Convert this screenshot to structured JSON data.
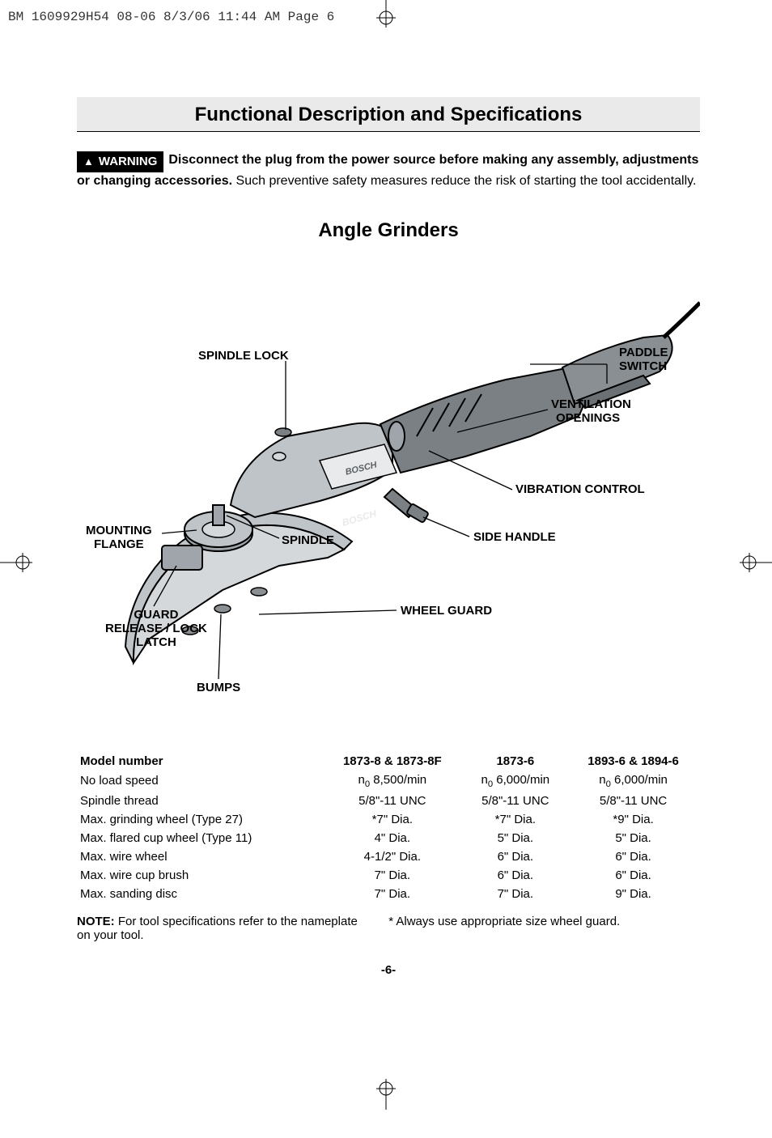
{
  "header_line": "BM 1609929H54 08-06  8/3/06  11:44 AM  Page 6",
  "title": "Functional Description and Specifications",
  "warning_badge": "WARNING",
  "warning_bold": "Disconnect the plug from the power source before making any assembly, adjustments or changing accessories.",
  "warning_rest": "  Such preventive safety measures reduce the risk of starting the tool accidentally.",
  "subtitle": "Angle Grinders",
  "labels": {
    "spindle_lock": "SPINDLE LOCK",
    "paddle_switch_l1": "PADDLE",
    "paddle_switch_l2": "SWITCH",
    "ventilation_l1": "VENTILATION",
    "ventilation_l2": "OPENINGS",
    "vibration": "VIBRATION CONTROL",
    "side_handle": "SIDE HANDLE",
    "spindle": "SPINDLE",
    "mounting_l1": "MOUNTING",
    "mounting_l2": "FLANGE",
    "wheel_guard": "WHEEL GUARD",
    "guard_l1": "GUARD",
    "guard_l2": "RELEASE / LOCK",
    "guard_l3": "LATCH",
    "bumps": "BUMPS"
  },
  "spec": {
    "headers": [
      "Model number",
      "1873-8 & 1873-8F",
      "1873-6",
      "1893-6 & 1894-6"
    ],
    "rows": [
      [
        "No load speed",
        "n₀ 8,500/min",
        "n₀ 6,000/min",
        "n₀ 6,000/min"
      ],
      [
        "Spindle thread",
        "5/8\"-11 UNC",
        "5/8\"-11 UNC",
        "5/8\"-11 UNC"
      ],
      [
        "Max. grinding wheel (Type 27)",
        "*7\" Dia.",
        "*7\" Dia.",
        "*9\" Dia."
      ],
      [
        "Max. flared cup wheel (Type 11)",
        "4\" Dia.",
        "5\" Dia.",
        "5\" Dia."
      ],
      [
        "Max. wire wheel",
        "4-1/2\" Dia.",
        "6\" Dia.",
        "6\" Dia."
      ],
      [
        "Max. wire cup brush",
        "7\" Dia.",
        "6\" Dia.",
        "6\" Dia."
      ],
      [
        "Max. sanding disc",
        "7\" Dia.",
        "7\" Dia.",
        "9\" Dia."
      ]
    ]
  },
  "footnote_left_l1": "NOTE:",
  "footnote_left_rest": " For tool specifications refer to the nameplate on your tool.",
  "footnote_right": "* Always use appropriate size wheel guard.",
  "page_num": "-6-",
  "colors": {
    "grinder_body": "#bfc4c9",
    "grinder_dark": "#7a8084",
    "grinder_handle": "#8a8f93",
    "guard_fill": "#d5d8db",
    "line": "#000000"
  }
}
